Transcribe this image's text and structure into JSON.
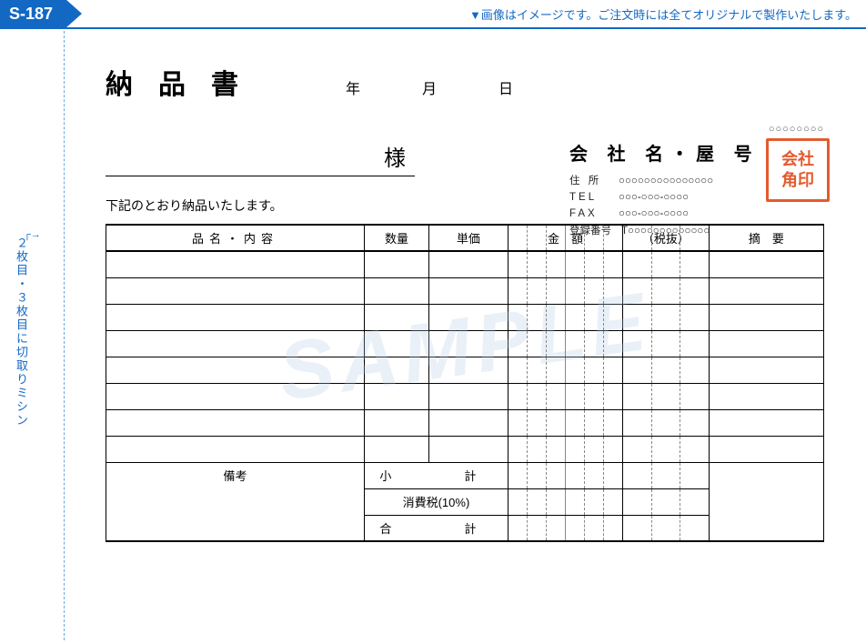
{
  "header": {
    "code": "S-187",
    "note": "▼画像はイメージです。ご注文時には全てオリジナルで製作いたします。"
  },
  "side": {
    "label": "２枚目・３枚目に切取りミシン",
    "arrow": "┌→"
  },
  "doc": {
    "title": "納品書",
    "date_units": "年　月　日",
    "recipient_suffix": "様",
    "intro": "下記のとおり納品いたします。",
    "sample_watermark": "SAMPLE"
  },
  "company": {
    "code": "○○○○○○○○",
    "name": "会 社 名・屋 号",
    "address_label": "住 所",
    "address_value": "○○○○○○○○○○○○○○○",
    "tel_label": "TEL",
    "tel_value": "○○○-○○○-○○○○",
    "fax_label": "FAX",
    "fax_value": "○○○-○○○-○○○○",
    "reg_label": "登録番号",
    "reg_value": "T○○○○○○○○○○○○○"
  },
  "stamp": {
    "text": "会社\n角印"
  },
  "table": {
    "headers": {
      "item": "品名・内容",
      "qty": "数量",
      "price": "単価",
      "amount": "金　額",
      "tax": "（税抜）",
      "note": "摘　要"
    },
    "body_rows": 8,
    "remarks_label": "備考",
    "subtotal": "小計",
    "tax_row": "消費税(10%)",
    "total": "合計",
    "amount_subcols": 6,
    "tax_subcols": 3
  },
  "colors": {
    "blue": "#1368c4",
    "stamp": "#e35b2e",
    "watermark": "rgba(180,200,230,0.28)"
  }
}
